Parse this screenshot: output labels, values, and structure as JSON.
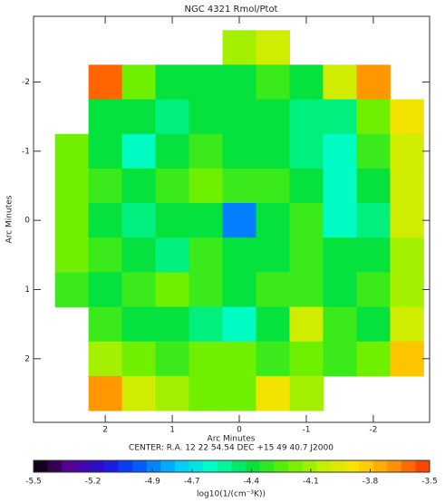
{
  "chart_data": {
    "type": "heatmap",
    "title": "NGC 4321 Rmol/Ptot",
    "x_label": "Arc Minutes",
    "y_label": "Arc Minutes",
    "center_text": "CENTER:  R.A.  12 22 54.54    DEC   +15 49 40.7   J2000",
    "colorbar_label": "log10(1/(cm⁻³K))",
    "x": [
      2.5,
      2.0,
      1.5,
      1.0,
      0.5,
      0,
      -0.5,
      -1.0,
      -1.5,
      -2.0,
      -2.5
    ],
    "y": [
      -2.5,
      -2.0,
      -1.5,
      -1.0,
      -0.5,
      0,
      0.5,
      1.0,
      1.5,
      2.0,
      2.5
    ],
    "z": [
      [
        null,
        null,
        null,
        null,
        null,
        -4.1,
        -4.0,
        null,
        null,
        null,
        null
      ],
      [
        null,
        -3.6,
        -4.2,
        -4.4,
        -4.4,
        -4.4,
        -4.3,
        -4.4,
        -4.0,
        -3.7,
        null
      ],
      [
        null,
        -4.4,
        -4.4,
        -4.5,
        -4.4,
        -4.4,
        -4.4,
        -4.5,
        -4.5,
        -4.2,
        -3.9
      ],
      [
        -4.2,
        -4.4,
        -4.6,
        -4.4,
        -4.3,
        -4.4,
        -4.4,
        -4.5,
        -4.6,
        -4.3,
        -4.0
      ],
      [
        -4.2,
        -4.3,
        -4.4,
        -4.3,
        -4.2,
        -4.3,
        -4.3,
        -4.4,
        -4.6,
        -4.4,
        -4.0
      ],
      [
        -4.2,
        -4.4,
        -4.5,
        -4.4,
        -4.4,
        -4.9,
        -4.4,
        -4.3,
        -4.6,
        -4.5,
        -4.0
      ],
      [
        -4.2,
        -4.3,
        -4.4,
        -4.5,
        -4.3,
        -4.4,
        -4.4,
        -4.3,
        -4.4,
        -4.4,
        -4.1
      ],
      [
        -4.3,
        -4.4,
        -4.3,
        -4.2,
        -4.3,
        -4.4,
        -4.3,
        -4.3,
        -4.4,
        -4.3,
        -4.1
      ],
      [
        null,
        -4.3,
        -4.4,
        -4.4,
        -4.5,
        -4.6,
        -4.4,
        -4.0,
        -4.3,
        -4.4,
        -4.0
      ],
      [
        null,
        -4.1,
        -4.2,
        -4.3,
        -4.2,
        -4.2,
        -4.3,
        -4.2,
        -4.3,
        -4.2,
        -3.8
      ],
      [
        null,
        -3.7,
        -4.0,
        -4.1,
        -4.2,
        -4.2,
        -3.9,
        -4.1,
        null,
        null,
        null
      ]
    ],
    "xlim": [
      3.07,
      -2.84
    ],
    "ylim": [
      -2.95,
      2.92
    ],
    "xticks": [
      2,
      1,
      0,
      -1,
      -2
    ],
    "yticks": [
      -2,
      -1,
      0,
      1,
      2
    ],
    "clim": [
      -5.5,
      -3.5
    ],
    "cticks": [
      -5.5,
      -5.2,
      -4.9,
      -4.7,
      -4.4,
      -4.1,
      -3.8,
      -3.5
    ],
    "colormap": [
      "#000000",
      "#5a0090",
      "#2010e0",
      "#0060ff",
      "#00c8ff",
      "#00ffc0",
      "#00e040",
      "#60f000",
      "#c0f000",
      "#ffe000",
      "#ff9000",
      "#ff3000"
    ]
  }
}
